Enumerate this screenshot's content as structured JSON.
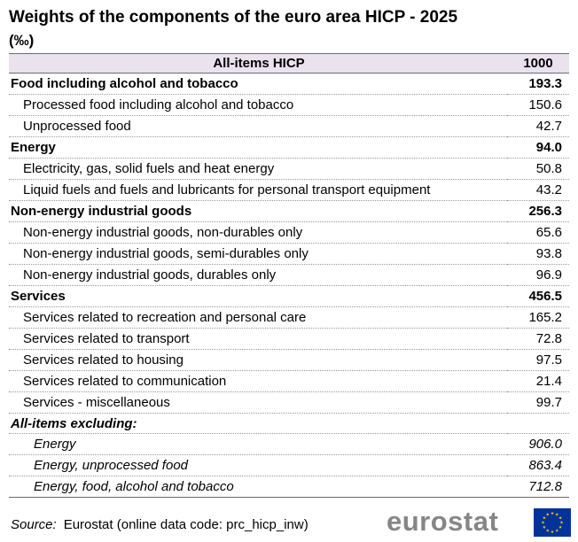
{
  "title": "Weights of the components of the euro area HICP - 2025",
  "unit": "(‰)",
  "header": {
    "label": "All-items HICP",
    "value": "1000"
  },
  "rows": [
    {
      "label": "Food including alcohol and tobacco",
      "value": "193.3",
      "kind": "group"
    },
    {
      "label": "Processed food including alcohol and tobacco",
      "value": "150.6",
      "kind": "sub"
    },
    {
      "label": "Unprocessed food",
      "value": "42.7",
      "kind": "sub"
    },
    {
      "label": "Energy",
      "value": "94.0",
      "kind": "group"
    },
    {
      "label": "Electricity, gas, solid fuels and heat energy",
      "value": "50.8",
      "kind": "sub"
    },
    {
      "label": "Liquid fuels and fuels and lubricants for personal transport equipment",
      "value": "43.2",
      "kind": "sub"
    },
    {
      "label": "Non-energy industrial goods",
      "value": "256.3",
      "kind": "group"
    },
    {
      "label": "Non-energy industrial goods, non-durables only",
      "value": "65.6",
      "kind": "sub"
    },
    {
      "label": "Non-energy industrial goods, semi-durables only",
      "value": "93.8",
      "kind": "sub"
    },
    {
      "label": "Non-energy industrial goods, durables only",
      "value": "96.9",
      "kind": "sub"
    },
    {
      "label": "Services",
      "value": "456.5",
      "kind": "group"
    },
    {
      "label": "Services related to recreation and personal care",
      "value": "165.2",
      "kind": "sub"
    },
    {
      "label": "Services related to transport",
      "value": "72.8",
      "kind": "sub"
    },
    {
      "label": "Services related to housing",
      "value": "97.5",
      "kind": "sub"
    },
    {
      "label": "Services related to communication",
      "value": "21.4",
      "kind": "sub"
    },
    {
      "label": "Services - miscellaneous",
      "value": "99.7",
      "kind": "sub"
    },
    {
      "label": "All-items excluding:",
      "value": "",
      "kind": "excl-header"
    },
    {
      "label": "Energy",
      "value": "906.0",
      "kind": "excl"
    },
    {
      "label": "Energy, unprocessed food",
      "value": "863.4",
      "kind": "excl"
    },
    {
      "label": "Energy, food, alcohol and tobacco",
      "value": "712.8",
      "kind": "excl"
    }
  ],
  "source": {
    "label": "Source:",
    "text": "Eurostat (online data code: prc_hicp_inw)"
  },
  "logo": {
    "text": "eurostat",
    "icon": "eu-flag-icon",
    "text_color": "#868686",
    "flag_color": "#003399",
    "star_color": "#ffcc00"
  },
  "colors": {
    "header_bg": "#ebe2f0"
  }
}
